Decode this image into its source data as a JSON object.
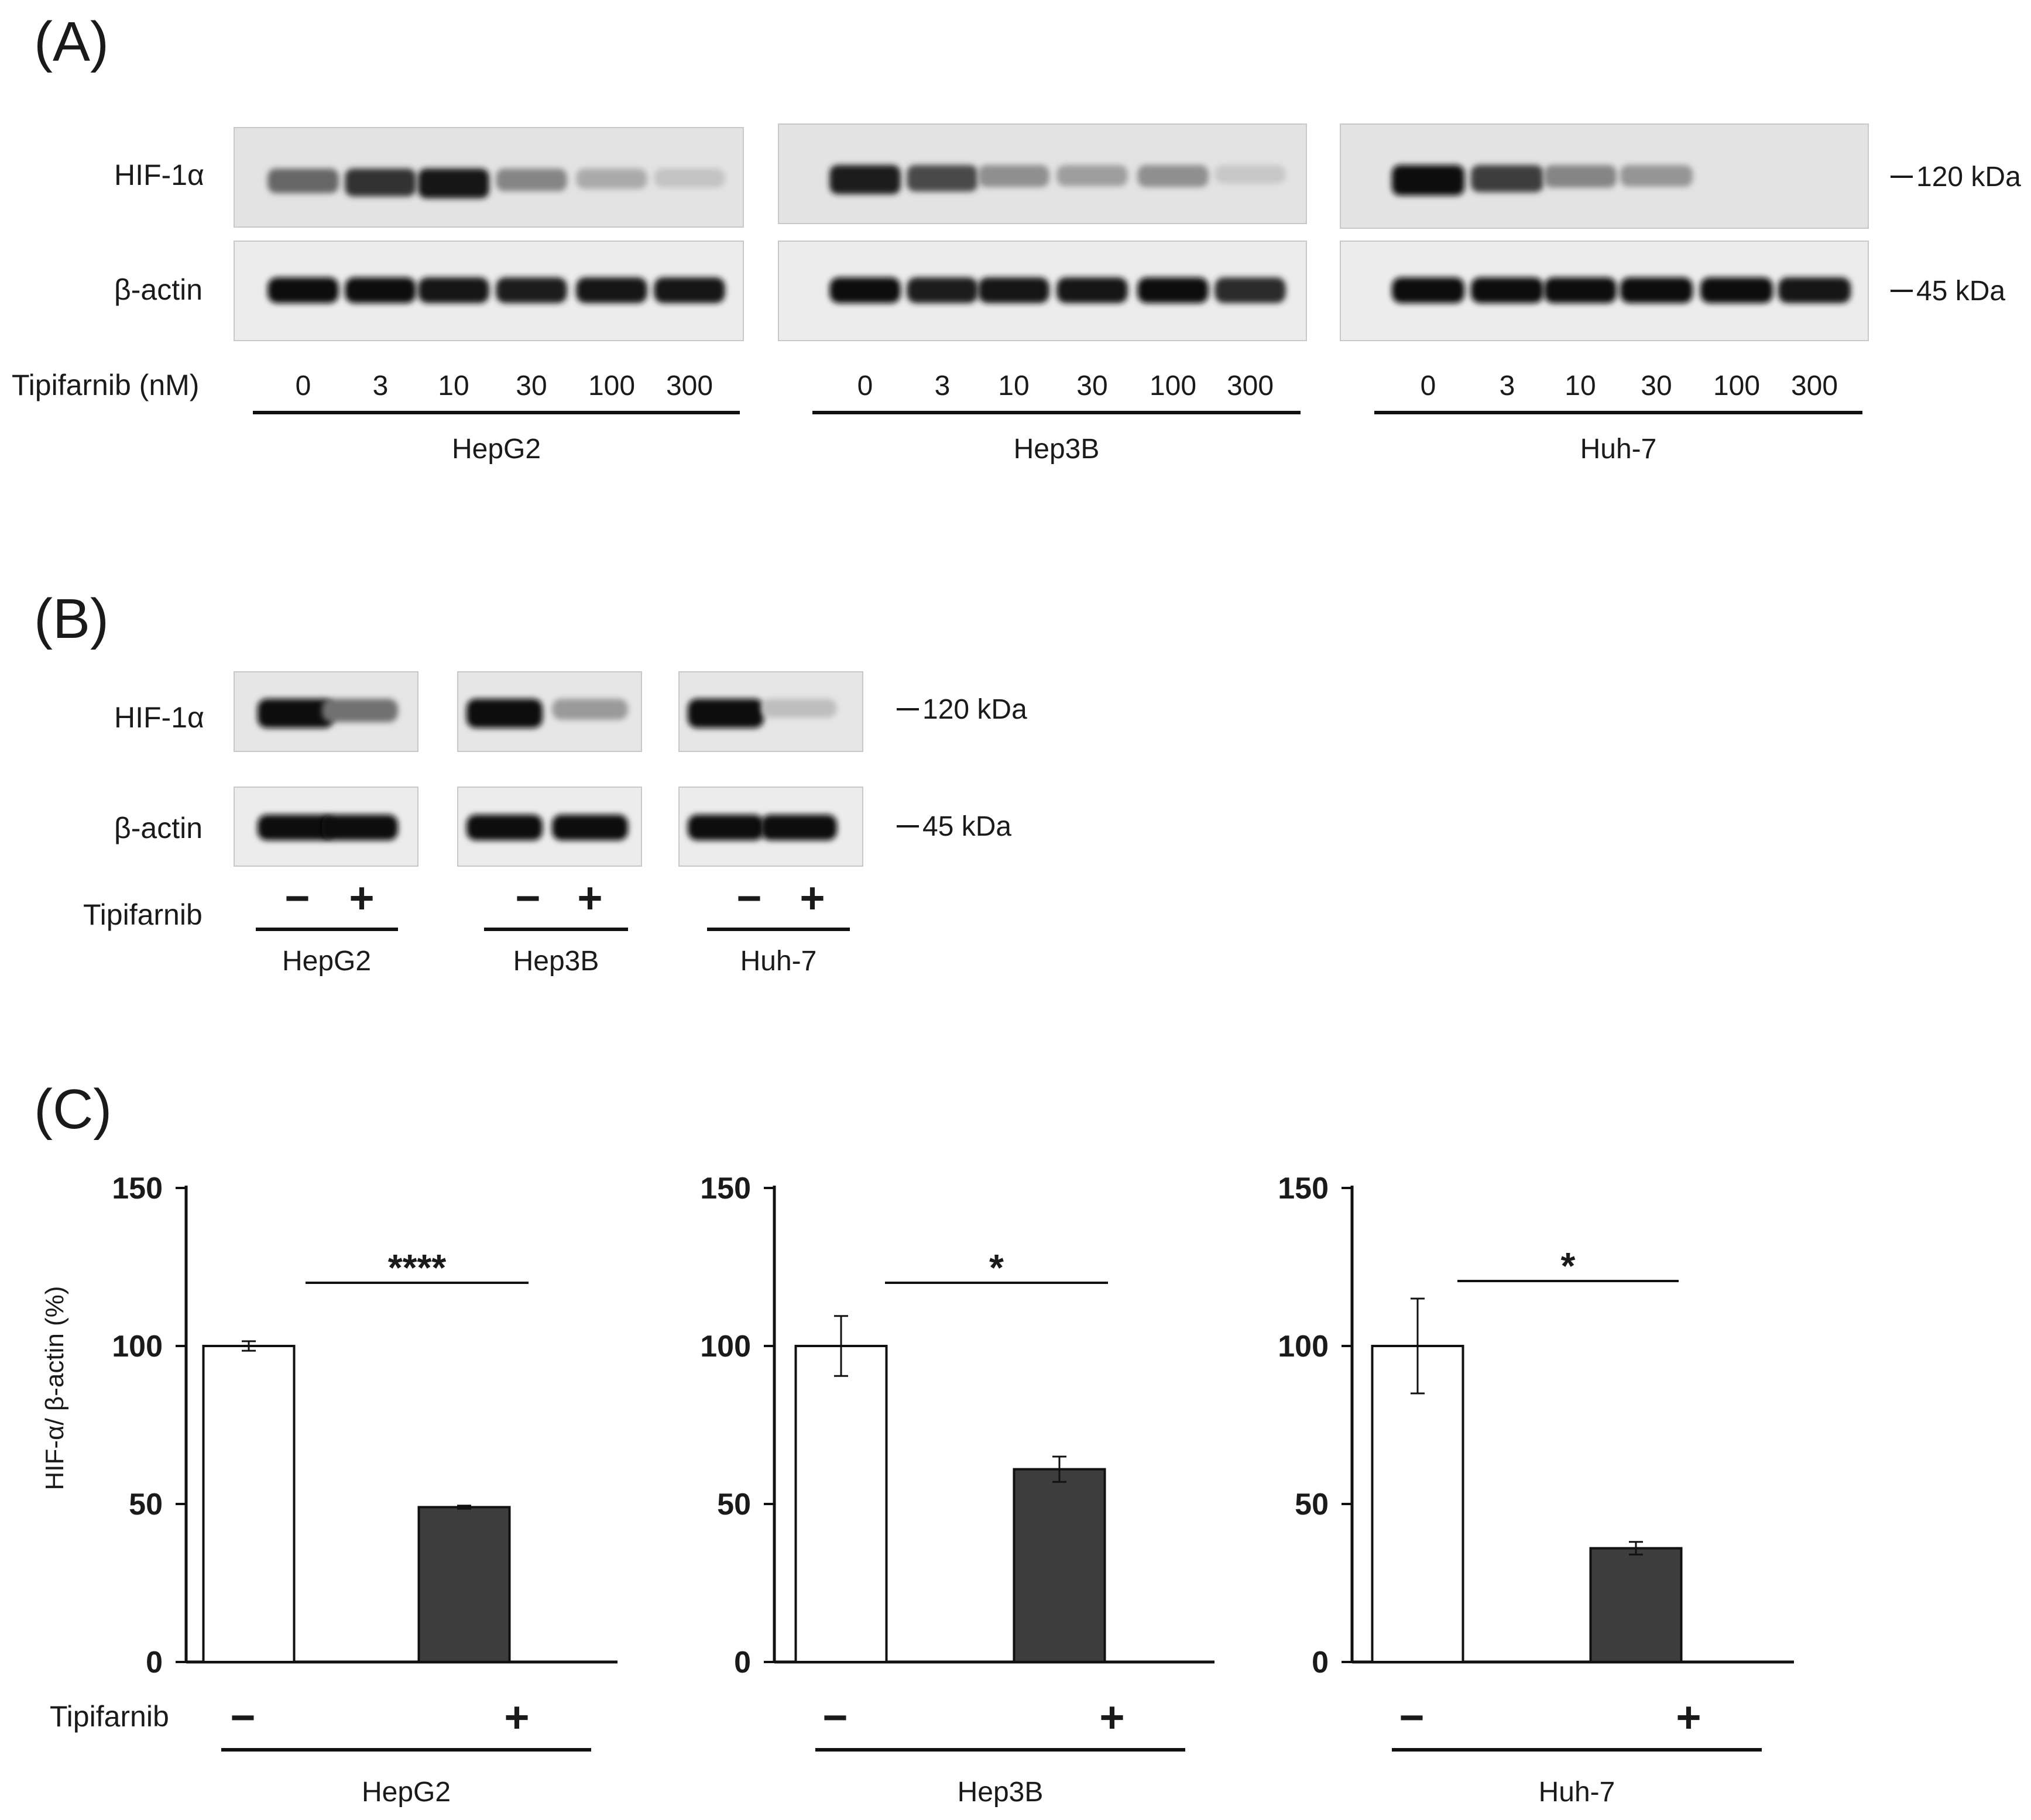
{
  "panels": {
    "a": {
      "label": "(A)",
      "rows": [
        "HIF-1α",
        "β-actin"
      ],
      "treatment_label": "Tipifarnib (nM)",
      "doses": [
        "0",
        "3",
        "10",
        "30",
        "100",
        "300"
      ],
      "markers": [
        "120 kDa",
        "45 kDa"
      ],
      "blots": [
        {
          "cell": "HepG2",
          "hif": [
            0.55,
            0.8,
            0.95,
            0.4,
            0.22,
            0.1
          ],
          "actin": [
            1,
            1,
            0.95,
            0.9,
            0.95,
            0.95
          ]
        },
        {
          "cell": "Hep3B",
          "hif": [
            0.9,
            0.7,
            0.35,
            0.28,
            0.35,
            0.08
          ],
          "actin": [
            1,
            0.9,
            0.95,
            0.95,
            1,
            0.85
          ]
        },
        {
          "cell": "Huh-7",
          "hif": [
            1,
            0.75,
            0.4,
            0.32,
            0,
            0
          ],
          "actin": [
            1,
            1,
            1,
            1,
            1,
            0.95
          ]
        }
      ]
    },
    "b": {
      "label": "(B)",
      "rows": [
        "HIF-1α",
        "β-actin"
      ],
      "treatment_label": "Tipifarnib",
      "conditions": [
        "−",
        "+"
      ],
      "markers": [
        "120 kDa",
        "45 kDa"
      ],
      "blots": [
        {
          "cell": "HepG2",
          "hif": [
            1,
            0.5
          ],
          "actin": [
            1,
            1
          ]
        },
        {
          "cell": "Hep3B",
          "hif": [
            1,
            0.3
          ],
          "actin": [
            1,
            1
          ]
        },
        {
          "cell": "Huh-7",
          "hif": [
            1,
            0.12
          ],
          "actin": [
            1,
            1
          ]
        }
      ]
    },
    "c": {
      "label": "(C)",
      "treatment_label": "Tipifarnib",
      "conditions": [
        "−",
        "+"
      ]
    }
  },
  "chart_data": [
    {
      "type": "bar",
      "categories": [
        "−",
        "+"
      ],
      "values": [
        100,
        49
      ],
      "errors": [
        1.5,
        0.5
      ],
      "colors": [
        "#ffffff",
        "#3d3d3d"
      ],
      "ylim": [
        0,
        150
      ],
      "yticks": [
        0,
        50,
        100,
        150
      ],
      "ylabel": "HIF-α/ β-actin (%)",
      "group_label": "HepG2",
      "significance": "****"
    },
    {
      "type": "bar",
      "categories": [
        "−",
        "+"
      ],
      "values": [
        100,
        61
      ],
      "errors": [
        9.5,
        4
      ],
      "colors": [
        "#ffffff",
        "#3d3d3d"
      ],
      "ylim": [
        0,
        150
      ],
      "yticks": [
        0,
        50,
        100,
        150
      ],
      "ylabel": "",
      "group_label": "Hep3B",
      "significance": "*"
    },
    {
      "type": "bar",
      "categories": [
        "−",
        "+"
      ],
      "values": [
        100,
        36
      ],
      "errors": [
        15,
        2
      ],
      "colors": [
        "#ffffff",
        "#3d3d3d"
      ],
      "ylim": [
        0,
        150
      ],
      "yticks": [
        0,
        50,
        100,
        150
      ],
      "ylabel": "",
      "group_label": "Huh-7",
      "significance": "*"
    }
  ]
}
